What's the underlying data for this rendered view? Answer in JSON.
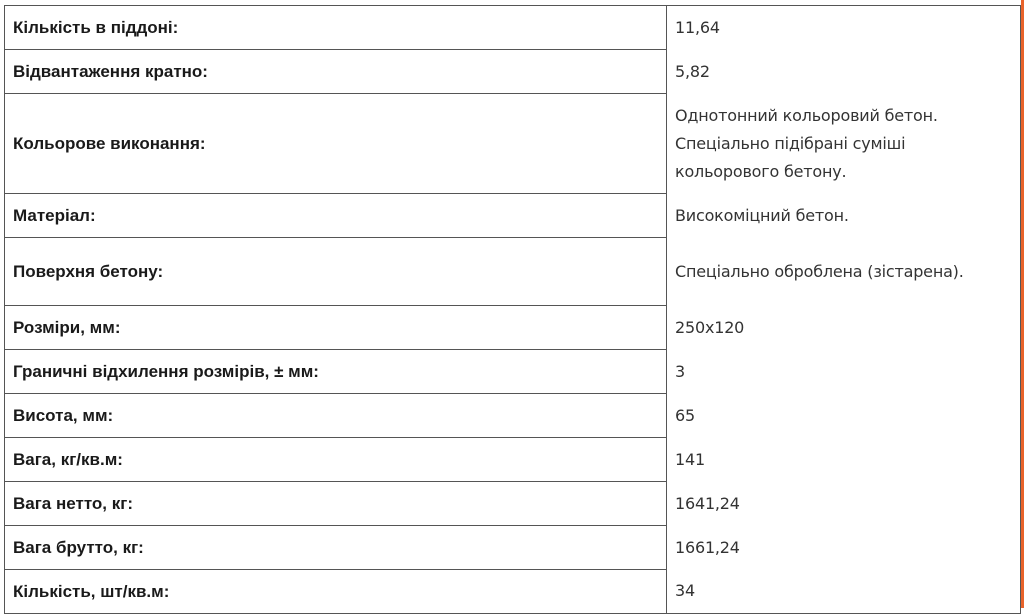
{
  "accent_color": "#e8632a",
  "rows": [
    {
      "label": "Кількість в піддоні:",
      "value": "11,64"
    },
    {
      "label": "Відвантаження кратно:",
      "value": "5,82"
    },
    {
      "label": "Кольорове виконання:",
      "value": "Однотонний кольоровий бетон. Спеціально підібрані суміші кольорового бетону."
    },
    {
      "label": "Матеріал:",
      "value": "Високоміцний бетон."
    },
    {
      "label": "Поверхня бетону:",
      "value": "Спеціально оброблена (зістарена)."
    },
    {
      "label": "Розміри, мм:",
      "value": "250x120"
    },
    {
      "label": "Граничні відхилення розмірів, ± мм:",
      "value": "3"
    },
    {
      "label": "Висота, мм:",
      "value": "65"
    },
    {
      "label": "Вага, кг/кв.м:",
      "value": "141"
    },
    {
      "label": "Вага нетто, кг:",
      "value": "1641,24"
    },
    {
      "label": "Вага брутто, кг:",
      "value": "1661,24"
    },
    {
      "label": "Кількість, шт/кв.м:",
      "value": "34"
    }
  ]
}
